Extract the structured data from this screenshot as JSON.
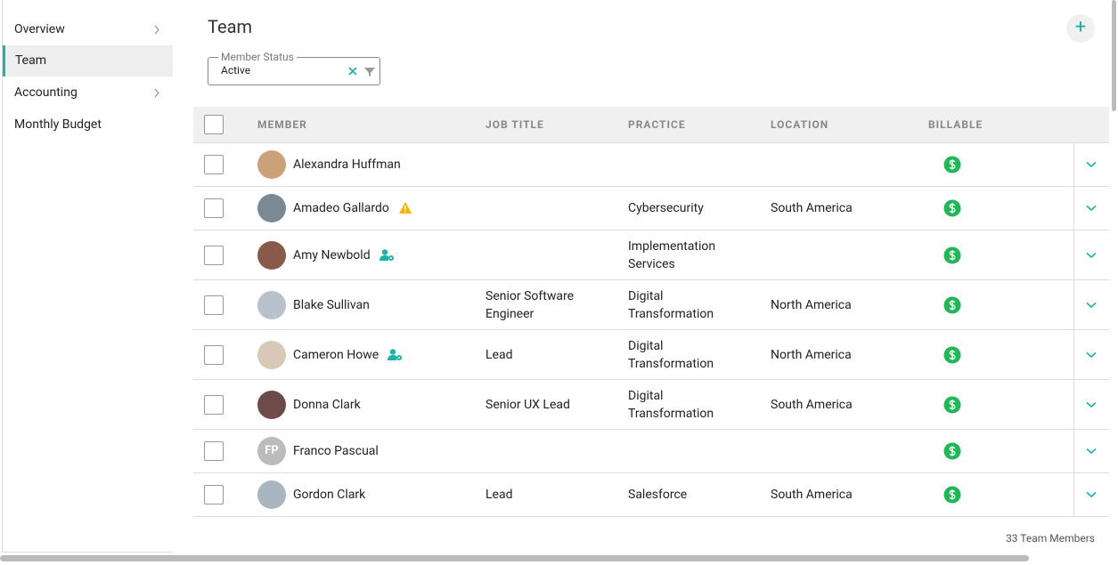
{
  "sidebar": {
    "items": [
      "Overview",
      "Team",
      "Accounting",
      "Monthly Budget"
    ]
  },
  "header": {
    "title": "Team"
  },
  "filter": {
    "label": "Member Status",
    "value": "Active"
  },
  "table": {
    "columns": [
      "MEMBER",
      "JOB TITLE",
      "PRACTICE",
      "LOCATION",
      "BILLABLE"
    ],
    "rows": [
      {
        "name": "Alexandra Huffman",
        "initials": null,
        "job_title": null,
        "practice": null,
        "location": null,
        "badge": null
      },
      {
        "name": "Amadeo Gallardo",
        "initials": null,
        "job_title": null,
        "practice": "Cybersecurity",
        "location": "South America",
        "badge": "warning"
      },
      {
        "name": "Amy Newbold",
        "initials": null,
        "job_title": null,
        "practice": "Implementation Services",
        "location": null,
        "badge": "admin"
      },
      {
        "name": "Blake Sullivan",
        "initials": null,
        "job_title": "Senior Software Engineer",
        "practice": "Digital Transformation",
        "location": "North America",
        "badge": null
      },
      {
        "name": "Cameron Howe",
        "initials": null,
        "job_title": "Lead",
        "practice": "Digital Transformation",
        "location": "North America",
        "badge": "admin"
      },
      {
        "name": "Donna Clark",
        "initials": null,
        "job_title": "Senior UX Lead",
        "practice": "Digital Transformation",
        "location": "South America",
        "badge": null
      },
      {
        "name": "Franco Pascual",
        "initials": "FP",
        "job_title": null,
        "practice": null,
        "location": null,
        "badge": null
      },
      {
        "name": "Gordon Clark",
        "initials": null,
        "job_title": "Lead",
        "practice": "Salesforce",
        "location": "South America",
        "badge": null
      }
    ]
  },
  "footer": {
    "count": "33 Team Members"
  }
}
